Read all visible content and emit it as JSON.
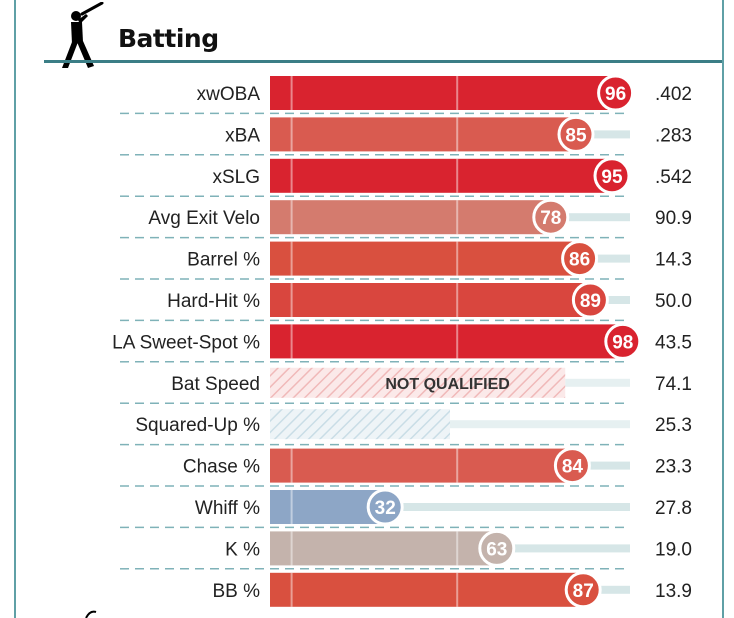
{
  "section": {
    "title": "Batting",
    "icon": "batter-icon"
  },
  "colors": {
    "rule": "#3b7e86",
    "track": "#d6e6e7",
    "hatch": "#f0b9b9",
    "hatch_blue": "#c9dde6",
    "dashed": "#7fb2b8"
  },
  "chart_data": {
    "type": "bar",
    "title": "Batting",
    "x_range": [
      0,
      100
    ],
    "not_qualified_label": "NOT QUALIFIED",
    "rows": [
      {
        "metric": "xwOBA",
        "percentile": 96,
        "value": ".402",
        "color": "#d9232f"
      },
      {
        "metric": "xBA",
        "percentile": 85,
        "value": ".283",
        "color": "#d95b50"
      },
      {
        "metric": "xSLG",
        "percentile": 95,
        "value": ".542",
        "color": "#d9232f"
      },
      {
        "metric": "Avg Exit Velo",
        "percentile": 78,
        "value": "90.9",
        "color": "#d47b6e"
      },
      {
        "metric": "Barrel %",
        "percentile": 86,
        "value": "14.3",
        "color": "#d9503f"
      },
      {
        "metric": "Hard-Hit %",
        "percentile": 89,
        "value": "50.0",
        "color": "#d9463e"
      },
      {
        "metric": "LA Sweet-Spot %",
        "percentile": 98,
        "value": "43.5",
        "color": "#d9232f"
      },
      {
        "metric": "Bat Speed",
        "percentile": null,
        "value": "74.1",
        "color": "#f0b9b9",
        "not_qualified": true,
        "hatch_extent": 82
      },
      {
        "metric": "Squared-Up %",
        "percentile": null,
        "value": "25.3",
        "color": "#c9dde6",
        "not_qualified": true,
        "hatch_extent": 50
      },
      {
        "metric": "Chase %",
        "percentile": 84,
        "value": "23.3",
        "color": "#d95b50"
      },
      {
        "metric": "Whiff %",
        "percentile": 32,
        "value": "27.8",
        "color": "#8da6c6"
      },
      {
        "metric": "K %",
        "percentile": 63,
        "value": "19.0",
        "color": "#c4b3ac"
      },
      {
        "metric": "BB %",
        "percentile": 87,
        "value": "13.9",
        "color": "#d9503f"
      }
    ]
  }
}
